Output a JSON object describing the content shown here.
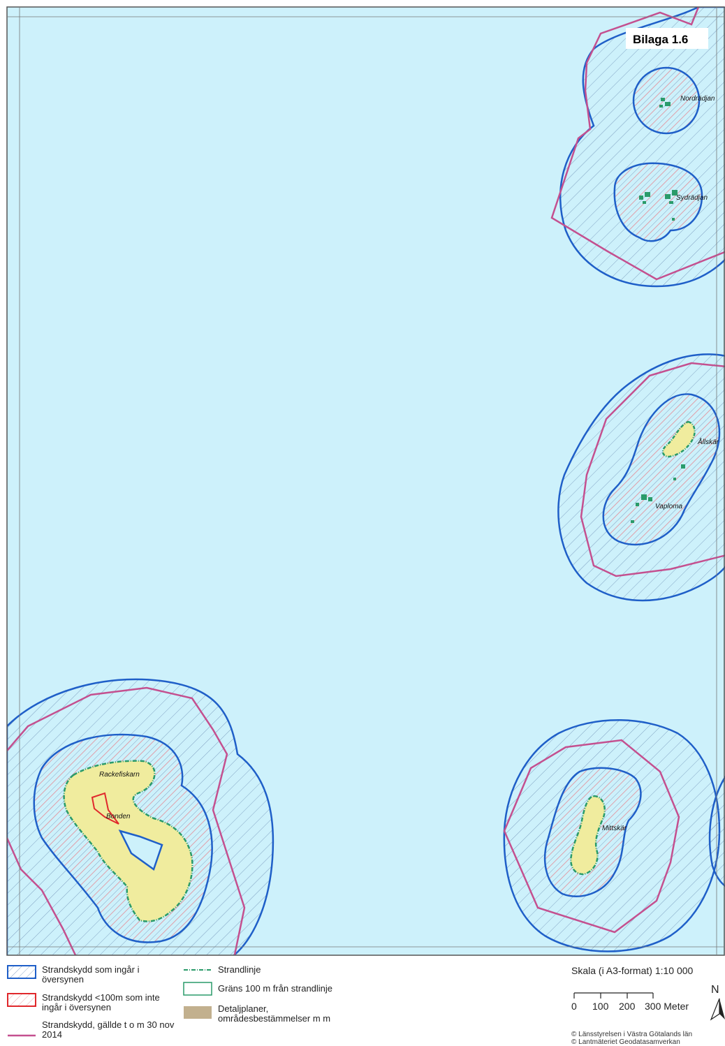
{
  "map": {
    "title": "Bilaga 1.6",
    "places": [
      "Nordrädjan",
      "Sydrädjan",
      "Ållskär",
      "Vaploma",
      "Rackefiskarn",
      "Bonden",
      "Mittskär"
    ],
    "colors": {
      "sea": "#cdf1fb",
      "land": "#f0ec9e",
      "blue_zone": "#1f5fc8",
      "red_zone": "#e0282c",
      "pink_line": "#c4508f",
      "shoreline": "#2a9b6a",
      "frame": "#555555"
    }
  },
  "legend": {
    "items": [
      {
        "label": "Strandskydd som ingår i översynen",
        "symbol": "blue-hatched-polygon-icon"
      },
      {
        "label": "Strandskydd <100m som inte ingår i översynen",
        "symbol": "red-hatched-polygon-icon"
      },
      {
        "label": "Strandskydd, gällde t o m 30 nov 2014",
        "symbol": "pink-line-icon"
      },
      {
        "label": "Strandlinje",
        "symbol": "dash-dot-line-icon"
      },
      {
        "label": "Gräns 100 m från strandlinje",
        "symbol": "green-outline-box-icon"
      },
      {
        "label": "Detaljplaner, områdesbestämmelser m m",
        "symbol": "tan-filled-box-icon"
      }
    ]
  },
  "scale": {
    "title": "Skala (i A3-format) 1:10 000",
    "ticks": [
      "0",
      "100",
      "200",
      "300 Meter"
    ]
  },
  "north_label": "N",
  "copyright": [
    "© Länsstyrelsen i Västra Götalands län",
    "© Lantmäteriet Geodatasamverkan"
  ]
}
